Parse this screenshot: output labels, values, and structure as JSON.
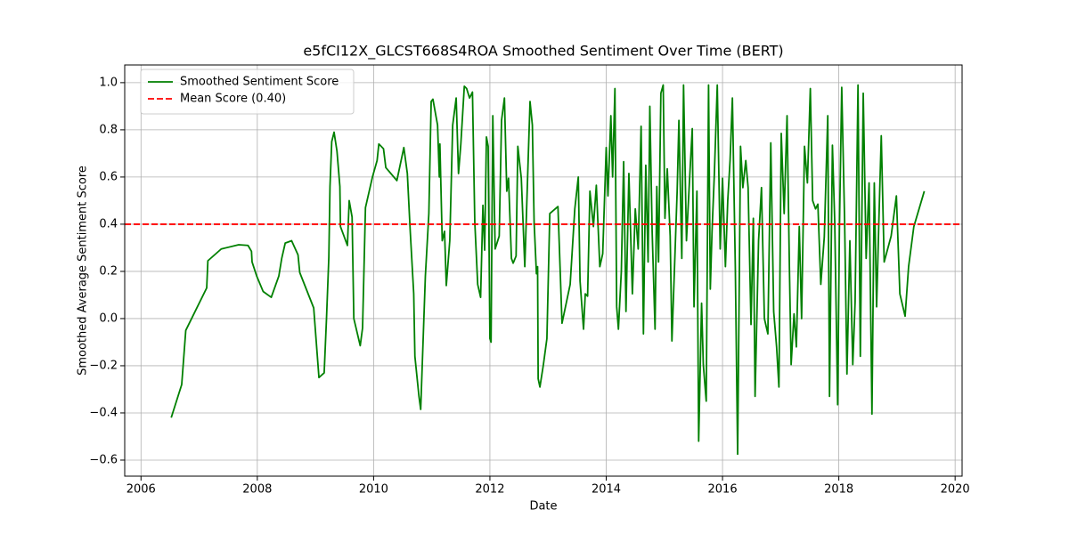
{
  "chart_data": {
    "type": "line",
    "title": "e5fCI12X_GLCST668S4ROA Smoothed Sentiment Over Time (BERT)",
    "x_label": "Date",
    "y_label": "Smoothed Average Sentiment Score",
    "x": [
      2006.52,
      2006.7,
      2006.77,
      2007.13,
      2007.15,
      2007.38,
      2007.68,
      2007.84,
      2007.9,
      2007.91,
      2007.99,
      2008.1,
      2008.24,
      2008.37,
      2008.42,
      2008.48,
      2008.59,
      2008.7,
      2008.73,
      2008.97,
      2009.06,
      2009.15,
      2009.19,
      2009.23,
      2009.25,
      2009.28,
      2009.32,
      2009.37,
      2009.42,
      2009.43,
      2009.55,
      2009.58,
      2009.63,
      2009.66,
      2009.77,
      2009.81,
      2009.86,
      2009.98,
      2010.06,
      2010.09,
      2010.17,
      2010.21,
      2010.4,
      2010.52,
      2010.58,
      2010.63,
      2010.69,
      2010.71,
      2010.78,
      2010.81,
      2010.89,
      2010.95,
      2010.99,
      2011.02,
      2011.1,
      2011.13,
      2011.14,
      2011.18,
      2011.22,
      2011.25,
      2011.31,
      2011.36,
      2011.42,
      2011.46,
      2011.5,
      2011.56,
      2011.6,
      2011.65,
      2011.7,
      2011.74,
      2011.79,
      2011.84,
      2011.88,
      2011.91,
      2011.94,
      2011.97,
      2012.0,
      2012.02,
      2012.05,
      2012.09,
      2012.16,
      2012.2,
      2012.25,
      2012.29,
      2012.32,
      2012.37,
      2012.4,
      2012.45,
      2012.48,
      2012.54,
      2012.6,
      2012.66,
      2012.69,
      2012.73,
      2012.76,
      2012.8,
      2012.82,
      2012.83,
      2012.86,
      2012.92,
      2012.98,
      2013.03,
      2013.17,
      2013.24,
      2013.38,
      2013.46,
      2013.52,
      2013.55,
      2013.61,
      2013.64,
      2013.68,
      2013.72,
      2013.78,
      2013.83,
      2013.89,
      2013.94,
      2014.0,
      2014.03,
      2014.08,
      2014.11,
      2014.15,
      2014.18,
      2014.21,
      2014.26,
      2014.3,
      2014.34,
      2014.39,
      2014.45,
      2014.5,
      2014.55,
      2014.6,
      2014.64,
      2014.68,
      2014.72,
      2014.75,
      2014.79,
      2014.84,
      2014.87,
      2014.9,
      2014.94,
      2014.98,
      2015.01,
      2015.05,
      2015.1,
      2015.13,
      2015.18,
      2015.22,
      2015.25,
      2015.3,
      2015.33,
      2015.38,
      2015.43,
      2015.48,
      2015.51,
      2015.56,
      2015.59,
      2015.64,
      2015.67,
      2015.72,
      2015.76,
      2015.79,
      2015.82,
      2015.86,
      2015.91,
      2015.96,
      2016.0,
      2016.05,
      2016.09,
      2016.13,
      2016.17,
      2016.22,
      2016.26,
      2016.31,
      2016.35,
      2016.4,
      2016.44,
      2016.49,
      2016.53,
      2016.56,
      2016.62,
      2016.67,
      2016.72,
      2016.78,
      2016.83,
      2016.88,
      2016.93,
      2016.97,
      2017.01,
      2017.06,
      2017.11,
      2017.15,
      2017.18,
      2017.23,
      2017.27,
      2017.32,
      2017.36,
      2017.41,
      2017.46,
      2017.51,
      2017.55,
      2017.6,
      2017.64,
      2017.69,
      2017.75,
      2017.81,
      2017.84,
      2017.89,
      2017.93,
      2017.98,
      2018.01,
      2018.05,
      2018.1,
      2018.14,
      2018.19,
      2018.24,
      2018.28,
      2018.33,
      2018.37,
      2018.42,
      2018.47,
      2018.52,
      2018.57,
      2018.61,
      2018.65,
      2018.69,
      2018.73,
      2018.78,
      2018.9,
      2018.99,
      2019.05,
      2019.14,
      2019.2,
      2019.29,
      2019.47
    ],
    "series": [
      {
        "name": "Smoothed Sentiment Score",
        "color": "#008000",
        "values": [
          -0.42,
          -0.28,
          -0.05,
          0.13,
          0.245,
          0.295,
          0.313,
          0.31,
          0.285,
          0.24,
          0.18,
          0.115,
          0.09,
          0.18,
          0.255,
          0.32,
          0.33,
          0.27,
          0.195,
          0.045,
          -0.25,
          -0.23,
          0.0,
          0.26,
          0.56,
          0.75,
          0.79,
          0.71,
          0.56,
          0.39,
          0.31,
          0.5,
          0.43,
          0.0,
          -0.115,
          -0.04,
          0.47,
          0.6,
          0.67,
          0.74,
          0.72,
          0.64,
          0.585,
          0.725,
          0.615,
          0.37,
          0.105,
          -0.16,
          -0.33,
          -0.385,
          0.18,
          0.445,
          0.92,
          0.93,
          0.82,
          0.6,
          0.74,
          0.33,
          0.37,
          0.14,
          0.33,
          0.82,
          0.935,
          0.615,
          0.74,
          0.985,
          0.975,
          0.935,
          0.96,
          0.41,
          0.145,
          0.09,
          0.48,
          0.29,
          0.77,
          0.73,
          -0.085,
          -0.1,
          0.86,
          0.295,
          0.35,
          0.84,
          0.935,
          0.54,
          0.595,
          0.255,
          0.235,
          0.265,
          0.73,
          0.595,
          0.22,
          0.69,
          0.92,
          0.82,
          0.41,
          0.19,
          0.22,
          -0.255,
          -0.29,
          -0.195,
          -0.085,
          0.445,
          0.475,
          -0.02,
          0.145,
          0.465,
          0.6,
          0.16,
          -0.045,
          0.105,
          0.095,
          0.54,
          0.39,
          0.565,
          0.22,
          0.275,
          0.725,
          0.52,
          0.86,
          0.6,
          0.975,
          0.05,
          -0.045,
          0.2,
          0.665,
          0.03,
          0.615,
          0.105,
          0.465,
          0.295,
          0.815,
          -0.065,
          0.65,
          0.24,
          0.9,
          0.37,
          -0.045,
          0.56,
          0.24,
          0.955,
          0.99,
          0.425,
          0.635,
          0.35,
          -0.095,
          0.255,
          0.54,
          0.84,
          0.255,
          0.99,
          0.33,
          0.575,
          0.805,
          0.05,
          0.54,
          -0.52,
          0.065,
          -0.195,
          -0.35,
          0.99,
          0.125,
          0.37,
          0.615,
          0.99,
          0.295,
          0.595,
          0.22,
          0.5,
          0.67,
          0.935,
          0.22,
          -0.575,
          0.73,
          0.555,
          0.67,
          0.555,
          -0.025,
          0.425,
          -0.33,
          0.33,
          0.555,
          0.0,
          -0.065,
          0.745,
          0.03,
          -0.12,
          -0.29,
          0.785,
          0.445,
          0.86,
          0.22,
          -0.195,
          0.02,
          -0.12,
          0.39,
          0.0,
          0.73,
          0.575,
          0.975,
          0.5,
          0.465,
          0.485,
          0.145,
          0.345,
          0.86,
          -0.33,
          0.735,
          0.41,
          -0.365,
          0.37,
          0.98,
          0.41,
          -0.235,
          0.33,
          -0.195,
          0.07,
          0.99,
          -0.16,
          0.955,
          0.255,
          0.575,
          -0.405,
          0.575,
          0.05,
          0.425,
          0.775,
          0.24,
          0.35,
          0.52,
          0.105,
          0.01,
          0.22,
          0.39,
          0.54
        ]
      }
    ],
    "mean_line": {
      "name": "Mean Score (0.40)",
      "value": 0.4,
      "color": "#ff0000",
      "style": "dashed"
    },
    "xlim": [
      2005.72,
      2020.12
    ],
    "xticks": [
      2006,
      2008,
      2010,
      2012,
      2014,
      2016,
      2018,
      2020
    ],
    "ylim": [
      -0.668,
      1.075
    ],
    "yticks": [
      {
        "value": -0.6,
        "label": "−0.6"
      },
      {
        "value": -0.4,
        "label": "−0.4"
      },
      {
        "value": -0.2,
        "label": "−0.2"
      },
      {
        "value": 0,
        "label": "0.0"
      },
      0.2,
      0.4,
      0.6,
      0.8,
      {
        "value": 1,
        "label": "1.0"
      }
    ],
    "grid": true,
    "legend": "upper left"
  }
}
